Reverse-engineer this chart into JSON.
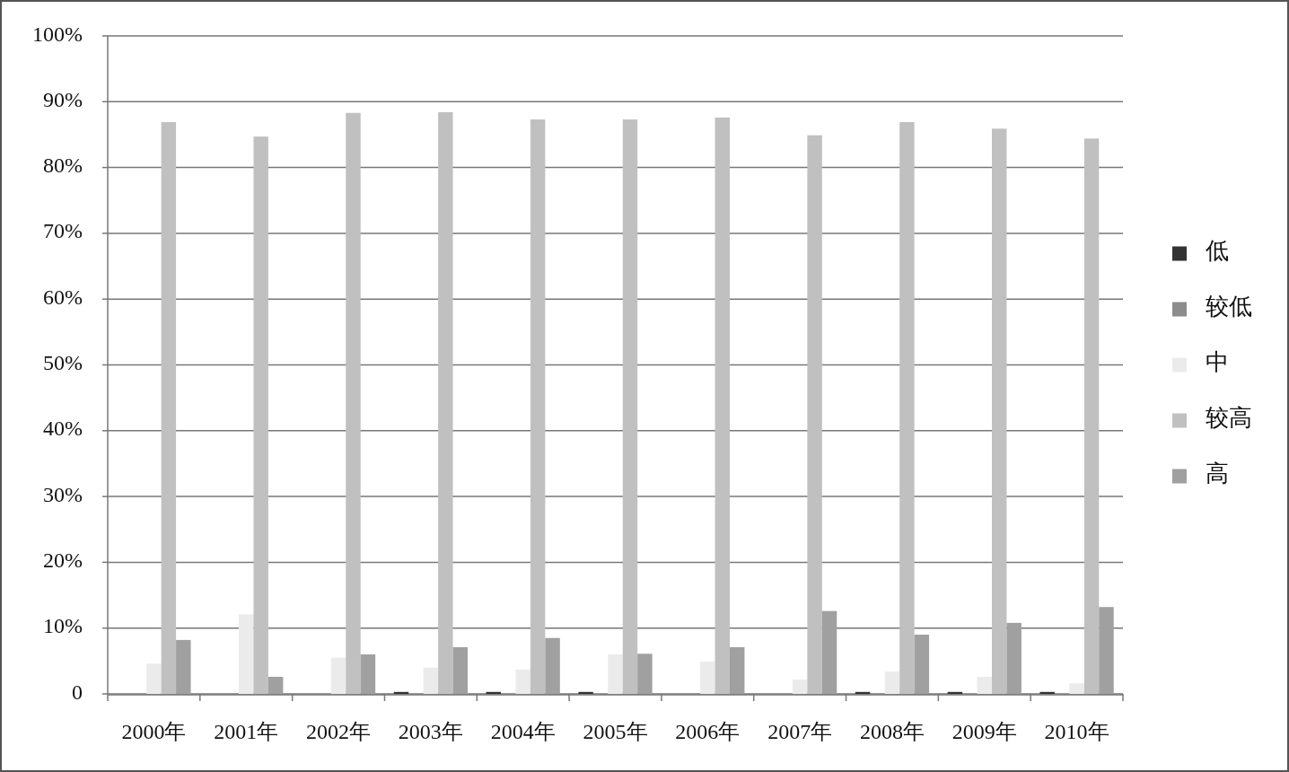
{
  "chart_data": {
    "type": "bar",
    "categories": [
      "2000年",
      "2001年",
      "2002年",
      "2003年",
      "2004年",
      "2005年",
      "2006年",
      "2007年",
      "2008年",
      "2009年",
      "2010年"
    ],
    "series": [
      {
        "name": "低",
        "color": "#333333",
        "values": [
          0,
          0,
          0,
          0.3,
          0.3,
          0.3,
          0,
          0,
          0.3,
          0.3,
          0.3
        ]
      },
      {
        "name": "较低",
        "color": "#8c8c8c",
        "values": [
          0,
          0,
          0,
          0,
          0,
          0,
          0,
          0,
          0,
          0,
          0
        ]
      },
      {
        "name": "中",
        "color": "#ebebeb",
        "values": [
          4.6,
          12.1,
          5.5,
          4.0,
          3.7,
          6.0,
          4.9,
          2.2,
          3.4,
          2.6,
          1.6
        ]
      },
      {
        "name": "较高",
        "color": "#c0c0c0",
        "values": [
          86.9,
          84.7,
          88.3,
          88.4,
          87.3,
          87.3,
          87.6,
          84.9,
          86.9,
          85.9,
          84.4
        ]
      },
      {
        "name": "高",
        "color": "#a0a0a0",
        "values": [
          8.2,
          2.6,
          6.0,
          7.1,
          8.5,
          6.1,
          7.1,
          12.6,
          9.0,
          10.8,
          13.2
        ]
      }
    ],
    "ylim": [
      0,
      100
    ],
    "yticks": [
      {
        "value": 0,
        "label": "0"
      },
      {
        "value": 10,
        "label": "10%"
      },
      {
        "value": 20,
        "label": "20%"
      },
      {
        "value": 30,
        "label": "30%"
      },
      {
        "value": 40,
        "label": "40%"
      },
      {
        "value": 50,
        "label": "50%"
      },
      {
        "value": 60,
        "label": "60%"
      },
      {
        "value": 70,
        "label": "70%"
      },
      {
        "value": 80,
        "label": "80%"
      },
      {
        "value": 90,
        "label": "90%"
      },
      {
        "value": 100,
        "label": "100%"
      }
    ],
    "grid": "y",
    "legend": "right"
  }
}
